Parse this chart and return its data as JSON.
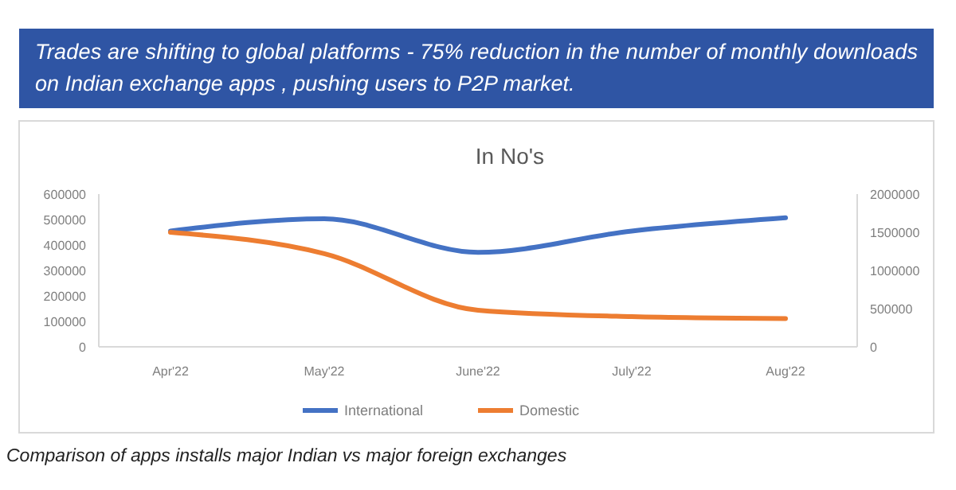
{
  "chart_data": {
    "type": "line",
    "title": "In No's",
    "subtitle": "Trades are shifting to global platforms - 75% reduction in the number of monthly downloads on Indian exchange apps , pushing users to P2P market.",
    "annotations": [
      "Comparison of apps installs major Indian vs major foreign exchanges"
    ],
    "categories": [
      "Apr'22",
      "May'22",
      "June'22",
      "July'22",
      "Aug'22"
    ],
    "series": [
      {
        "name": "International",
        "color": "#4472c4",
        "values": [
          455000,
          503000,
          371000,
          455000,
          507000
        ]
      },
      {
        "name": "Domestic",
        "color": "#ed7d31",
        "axis": "y2",
        "values": [
          1500000,
          1220000,
          480000,
          395000,
          370000
        ]
      }
    ],
    "ylim": [
      0,
      600000
    ],
    "yticks": [
      0,
      100000,
      200000,
      300000,
      400000,
      500000,
      600000
    ],
    "y2lim": [
      0,
      2000000
    ],
    "y2ticks": [
      0,
      500000,
      1000000,
      1500000,
      2000000
    ],
    "legend": "bottom"
  }
}
